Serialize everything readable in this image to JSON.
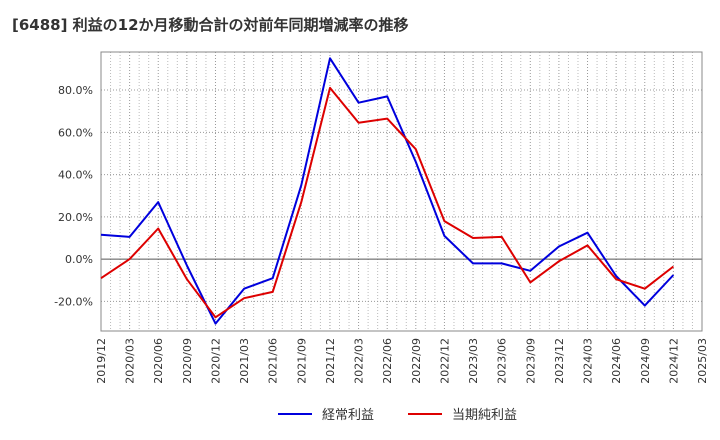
{
  "title": "[6488]  利益の12か月移動合計の対前年同期増減率の推移",
  "chart_data": {
    "type": "line",
    "x": [
      "2019/12",
      "2020/03",
      "2020/06",
      "2020/09",
      "2020/12",
      "2021/03",
      "2021/06",
      "2021/09",
      "2021/12",
      "2022/03",
      "2022/06",
      "2022/09",
      "2022/12",
      "2023/03",
      "2023/06",
      "2023/09",
      "2023/12",
      "2024/03",
      "2024/06",
      "2024/09",
      "2024/12",
      "2025/03"
    ],
    "series": [
      {
        "name": "経常利益",
        "color": "#0000dd",
        "values": [
          11.5,
          10.5,
          27,
          -3,
          -30.5,
          -14,
          -9,
          35,
          95,
          74,
          77,
          46,
          11,
          -2,
          -2,
          -5.5,
          6,
          12.5,
          -8,
          -22,
          -7.5,
          null
        ]
      },
      {
        "name": "当期純利益",
        "color": "#dd0000",
        "values": [
          -9,
          0,
          14.5,
          -9.5,
          -27.5,
          -18.5,
          -15.5,
          27,
          81,
          64.5,
          66.5,
          52,
          18,
          10,
          10.5,
          -11,
          -1,
          6.5,
          -9.5,
          -14,
          -3.5,
          null
        ]
      }
    ],
    "ylim": [
      -34,
      98
    ],
    "yticks": [
      -20,
      0,
      20,
      40,
      60,
      80
    ],
    "ytick_labels": [
      "-20.0%",
      "0.0%",
      "20.0%",
      "40.0%",
      "60.0%",
      "80.0%"
    ],
    "xlabel": "",
    "ylabel": "",
    "grid": true,
    "legend_position": "bottom-center"
  }
}
